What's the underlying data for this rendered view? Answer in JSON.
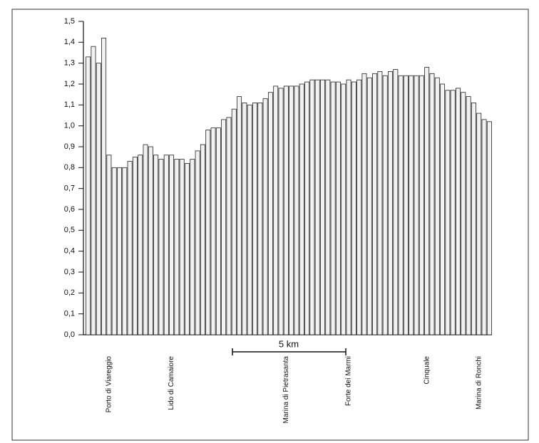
{
  "chart_data": {
    "type": "bar",
    "categories": [
      null,
      null,
      null,
      null,
      "Porto di Viareggio",
      null,
      null,
      null,
      null,
      null,
      null,
      null,
      null,
      null,
      null,
      null,
      "Lido di Camaiore",
      null,
      null,
      null,
      null,
      null,
      null,
      null,
      null,
      null,
      null,
      null,
      null,
      null,
      null,
      null,
      null,
      null,
      null,
      null,
      null,
      null,
      "Marina di Pietrasanta",
      null,
      null,
      null,
      null,
      null,
      null,
      null,
      null,
      null,
      null,
      null,
      "Forte dei Marmi",
      null,
      null,
      null,
      null,
      null,
      null,
      null,
      null,
      null,
      null,
      null,
      null,
      null,
      null,
      "Cinquale",
      null,
      null,
      null,
      null,
      null,
      null,
      null,
      null,
      null,
      "Marina di Ronchi",
      null,
      null
    ],
    "values": [
      1.33,
      1.38,
      1.3,
      1.42,
      0.86,
      0.8,
      0.8,
      0.8,
      0.83,
      0.85,
      0.86,
      0.91,
      0.9,
      0.86,
      0.84,
      0.86,
      0.86,
      0.84,
      0.84,
      0.82,
      0.84,
      0.88,
      0.91,
      0.98,
      0.99,
      0.99,
      1.03,
      1.04,
      1.08,
      1.14,
      1.11,
      1.1,
      1.11,
      1.11,
      1.13,
      1.16,
      1.19,
      1.18,
      1.19,
      1.19,
      1.19,
      1.2,
      1.21,
      1.22,
      1.22,
      1.22,
      1.22,
      1.21,
      1.21,
      1.2,
      1.22,
      1.21,
      1.22,
      1.25,
      1.23,
      1.25,
      1.26,
      1.24,
      1.26,
      1.27,
      1.24,
      1.24,
      1.24,
      1.24,
      1.24,
      1.28,
      1.25,
      1.23,
      1.2,
      1.17,
      1.17,
      1.18,
      1.16,
      1.14,
      1.11,
      1.06,
      1.03,
      1.02
    ],
    "color": "#f2f2f2",
    "ylim": [
      0,
      1.5
    ],
    "yticks": [
      {
        "value": 0,
        "label": "0,0"
      },
      {
        "value": 0.1,
        "label": "0,1"
      },
      {
        "value": 0.2,
        "label": "0,2"
      },
      {
        "value": 0.3,
        "label": "0,3"
      },
      {
        "value": 0.4,
        "label": "0,4"
      },
      {
        "value": 0.5,
        "label": "0,5"
      },
      {
        "value": 0.6,
        "label": "0,6"
      },
      {
        "value": 0.7,
        "label": "0,7"
      },
      {
        "value": 0.8,
        "label": "0,8"
      },
      {
        "value": 0.9,
        "label": "0,9"
      },
      {
        "value": 1.0,
        "label": "1,0"
      },
      {
        "value": 1.1,
        "label": "1,1"
      },
      {
        "value": 1.2,
        "label": "1,2"
      },
      {
        "value": 1.3,
        "label": "1,3"
      },
      {
        "value": 1.4,
        "label": "1,4"
      },
      {
        "value": 1.5,
        "label": "1,5"
      }
    ],
    "scale_label": "5 km"
  }
}
